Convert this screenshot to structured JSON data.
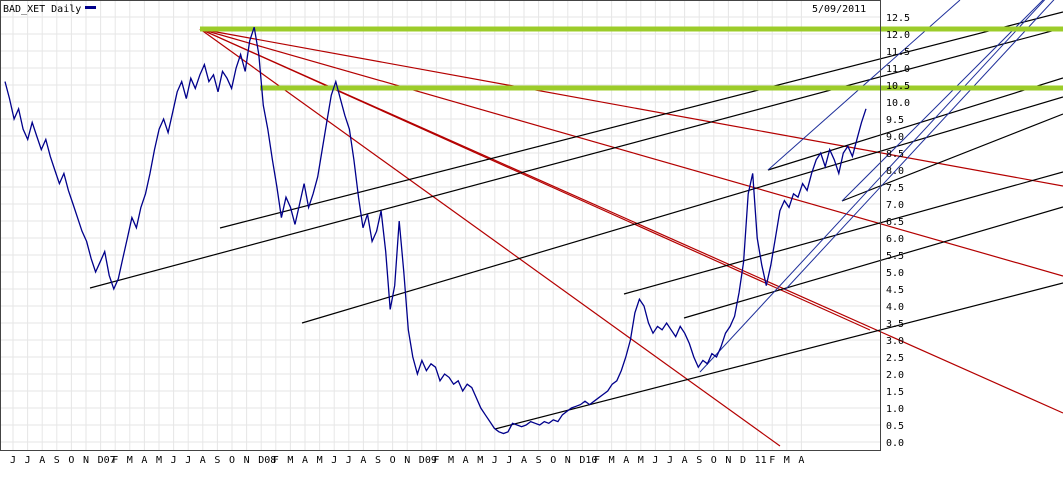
{
  "chart_data": {
    "type": "line",
    "title": "BAD_XET Daily",
    "date": "5/09/2011",
    "colors": {
      "price": "#00008b",
      "fan": "#b40000",
      "channel": "#000000",
      "blue_channel": "#1e2f9a",
      "resistance": "#9ccc2a",
      "grid": "#e6e6e6"
    },
    "ylim": [
      0,
      12.5
    ],
    "y_ticks": [
      "12.5",
      "12.0",
      "11.5",
      "11.0",
      "10.5",
      "10.0",
      "9.5",
      "9.0",
      "8.5",
      "8.0",
      "7.5",
      "7.0",
      "6.5",
      "6.0",
      "5.5",
      "5.0",
      "4.5",
      "4.0",
      "3.5",
      "3.0",
      "2.5",
      "2.0",
      "1.5",
      "1.0",
      "0.5",
      "0.0"
    ],
    "x_ticks": [
      "J",
      "J",
      "A",
      "S",
      "O",
      "N",
      "D07",
      "F",
      "M",
      "A",
      "M",
      "J",
      "J",
      "A",
      "S",
      "O",
      "N",
      "D08",
      "F",
      "M",
      "A",
      "M",
      "J",
      "J",
      "A",
      "S",
      "O",
      "N",
      "D09",
      "F",
      "M",
      "A",
      "M",
      "J",
      "J",
      "A",
      "S",
      "O",
      "N",
      "D10",
      "F",
      "M",
      "A",
      "M",
      "J",
      "J",
      "A",
      "S",
      "O",
      "N",
      "D",
      "11",
      "F",
      "M",
      "A"
    ],
    "series": [
      {
        "values": [
          10.6,
          10.1,
          9.5,
          9.8,
          9.2,
          8.9,
          9.4,
          9.0,
          8.6,
          8.9,
          8.4,
          8.0,
          7.6,
          7.9,
          7.4,
          7.0,
          6.6,
          6.2,
          5.9,
          5.4,
          5.0,
          5.3,
          5.6,
          4.9,
          4.5,
          4.8,
          5.4,
          6.0,
          6.6,
          6.3,
          6.9,
          7.3,
          7.9,
          8.6,
          9.2,
          9.5,
          9.1,
          9.7,
          10.3,
          10.6,
          10.1,
          10.7,
          10.4,
          10.8,
          11.1,
          10.6,
          10.8,
          10.3,
          10.9,
          10.7,
          10.4,
          11.0,
          11.4,
          10.9,
          11.8,
          12.2,
          11.4,
          9.9,
          9.2,
          8.3,
          7.5,
          6.6,
          7.2,
          6.9,
          6.4,
          7.0,
          7.6,
          6.9,
          7.3,
          7.8,
          8.6,
          9.4,
          10.2,
          10.6,
          10.1,
          9.6,
          9.2,
          8.3,
          7.2,
          6.3,
          6.7,
          5.9,
          6.2,
          6.8,
          5.6,
          3.9,
          4.6,
          6.5,
          5.0,
          3.3,
          2.5,
          2.0,
          2.4,
          2.1,
          2.3,
          2.2,
          1.8,
          2.0,
          1.9,
          1.7,
          1.8,
          1.5,
          1.7,
          1.6,
          1.3,
          1.0,
          0.8,
          0.6,
          0.4,
          0.3,
          0.25,
          0.3,
          0.55,
          0.5,
          0.45,
          0.5,
          0.6,
          0.55,
          0.5,
          0.6,
          0.55,
          0.65,
          0.6,
          0.8,
          0.9,
          1.0,
          1.05,
          1.1,
          1.2,
          1.1,
          1.2,
          1.3,
          1.4,
          1.5,
          1.7,
          1.8,
          2.1,
          2.5,
          3.0,
          3.8,
          4.2,
          4.0,
          3.5,
          3.2,
          3.4,
          3.3,
          3.5,
          3.3,
          3.1,
          3.4,
          3.2,
          2.9,
          2.5,
          2.2,
          2.4,
          2.3,
          2.6,
          2.5,
          2.8,
          3.2,
          3.4,
          3.7,
          4.4,
          5.3,
          7.3,
          7.9,
          6.0,
          5.2,
          4.6,
          5.2,
          6.0,
          6.8,
          7.1,
          6.9,
          7.3,
          7.2,
          7.6,
          7.4,
          7.9,
          8.3,
          8.5,
          8.1,
          8.6,
          8.3,
          7.9,
          8.5,
          8.7,
          8.4,
          8.9,
          9.4,
          9.8
        ]
      }
    ],
    "grid": true
  }
}
